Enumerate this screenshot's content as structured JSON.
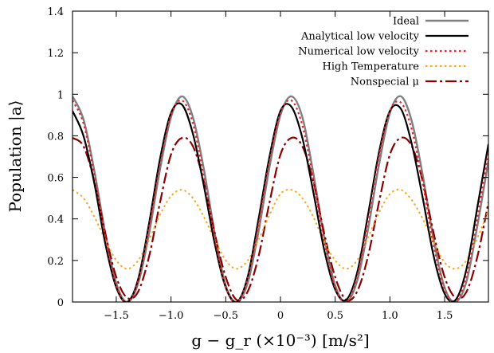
{
  "chart_data": {
    "type": "line",
    "title": "",
    "xlabel": "g − g_r (×10⁻³) [m/s²]",
    "ylabel": "Population |a⟩",
    "xlim": [
      -1.9,
      1.9
    ],
    "ylim": [
      0,
      1.4
    ],
    "x_ticks": [
      {
        "value": -1.5,
        "label": "−1.5"
      },
      {
        "value": -1.0,
        "label": "−1.0"
      },
      {
        "value": -0.5,
        "label": "−0.5"
      },
      {
        "value": 0,
        "label": "0"
      },
      {
        "value": 0.5,
        "label": "0.5"
      },
      {
        "value": 1.0,
        "label": "1.0"
      },
      {
        "value": 1.5,
        "label": "1.5"
      }
    ],
    "y_ticks": [
      {
        "value": 0,
        "label": "0"
      },
      {
        "value": 0.2,
        "label": "0.2"
      },
      {
        "value": 0.4,
        "label": "0.4"
      },
      {
        "value": 0.6,
        "label": "0.6"
      },
      {
        "value": 0.8,
        "label": "0.8"
      },
      {
        "value": 1,
        "label": "1"
      },
      {
        "value": 1.2,
        "label": "1.2"
      },
      {
        "value": 1.4,
        "label": "1.4"
      }
    ],
    "grid": false,
    "legend_position": "top-right",
    "series": [
      {
        "name": "Ideal",
        "color": "#808080",
        "dash": "solid",
        "width": 2.4,
        "x": [
          -1.9,
          -1.8,
          -1.7,
          -1.6,
          -1.5,
          -1.4,
          -1.3,
          -1.2,
          -1.1,
          -1.0,
          -0.9,
          -0.8,
          -0.7,
          -0.6,
          -0.5,
          -0.4,
          -0.3,
          -0.2,
          -0.1,
          0.0,
          0.1,
          0.2,
          0.3,
          0.4,
          0.5,
          0.6,
          0.7,
          0.8,
          0.9,
          1.0,
          1.1,
          1.2,
          1.3,
          1.4,
          1.5,
          1.6,
          1.7,
          1.8,
          1.9
        ],
        "y": [
          0.99,
          0.88,
          0.63,
          0.33,
          0.09,
          0.0,
          0.09,
          0.33,
          0.64,
          0.89,
          0.99,
          0.89,
          0.64,
          0.33,
          0.08,
          0.0,
          0.09,
          0.34,
          0.65,
          0.9,
          0.99,
          0.89,
          0.62,
          0.31,
          0.08,
          0.0,
          0.1,
          0.35,
          0.66,
          0.91,
          0.99,
          0.87,
          0.61,
          0.3,
          0.07,
          0.0,
          0.1,
          0.37,
          0.68
        ]
      },
      {
        "name": "Analytical low velocity",
        "color": "#000000",
        "dash": "solid",
        "width": 2.2,
        "x": [
          -1.9,
          -1.8,
          -1.7,
          -1.6,
          -1.5,
          -1.4,
          -1.3,
          -1.2,
          -1.1,
          -1.0,
          -0.9,
          -0.8,
          -0.7,
          -0.6,
          -0.5,
          -0.4,
          -0.3,
          -0.2,
          -0.1,
          0.0,
          0.1,
          0.2,
          0.3,
          0.4,
          0.5,
          0.6,
          0.7,
          0.8,
          0.9,
          1.0,
          1.1,
          1.2,
          1.3,
          1.4,
          1.5,
          1.6,
          1.7,
          1.8,
          1.9
        ],
        "y": [
          0.92,
          0.8,
          0.57,
          0.28,
          0.07,
          0.0,
          0.11,
          0.38,
          0.69,
          0.91,
          0.95,
          0.81,
          0.56,
          0.28,
          0.07,
          0.0,
          0.12,
          0.4,
          0.7,
          0.92,
          0.94,
          0.79,
          0.53,
          0.25,
          0.06,
          0.01,
          0.14,
          0.42,
          0.72,
          0.92,
          0.93,
          0.76,
          0.5,
          0.22,
          0.04,
          0.01,
          0.16,
          0.46,
          0.76
        ]
      },
      {
        "name": "Numerical low velocity",
        "color": "#e8242a",
        "dash": "2.5,3.5",
        "width": 2.2,
        "x": [
          -1.9,
          -1.8,
          -1.7,
          -1.6,
          -1.5,
          -1.4,
          -1.3,
          -1.2,
          -1.1,
          -1.0,
          -0.9,
          -0.8,
          -0.7,
          -0.6,
          -0.5,
          -0.4,
          -0.3,
          -0.2,
          -0.1,
          0.0,
          0.1,
          0.2,
          0.3,
          0.4,
          0.5,
          0.6,
          0.7,
          0.8,
          0.9,
          1.0,
          1.1,
          1.2,
          1.3,
          1.4,
          1.5,
          1.6,
          1.7,
          1.8,
          1.9
        ],
        "y": [
          0.97,
          0.86,
          0.61,
          0.31,
          0.08,
          0.0,
          0.1,
          0.36,
          0.66,
          0.9,
          0.97,
          0.86,
          0.6,
          0.31,
          0.07,
          0.0,
          0.11,
          0.37,
          0.68,
          0.91,
          0.97,
          0.85,
          0.59,
          0.29,
          0.07,
          0.0,
          0.12,
          0.39,
          0.7,
          0.92,
          0.96,
          0.83,
          0.57,
          0.27,
          0.06,
          0.0,
          0.13,
          0.41,
          0.72
        ]
      },
      {
        "name": "High Temperature",
        "color": "#f5a623",
        "dash": "2.5,3.5",
        "width": 2.0,
        "x": [
          -1.9,
          -1.8,
          -1.7,
          -1.6,
          -1.5,
          -1.4,
          -1.3,
          -1.2,
          -1.1,
          -1.0,
          -0.9,
          -0.8,
          -0.7,
          -0.6,
          -0.5,
          -0.4,
          -0.3,
          -0.2,
          -0.1,
          0.0,
          0.1,
          0.2,
          0.3,
          0.4,
          0.5,
          0.6,
          0.7,
          0.8,
          0.9,
          1.0,
          1.1,
          1.2,
          1.3,
          1.4,
          1.5,
          1.6,
          1.7,
          1.8,
          1.9
        ],
        "y": [
          0.54,
          0.5,
          0.41,
          0.3,
          0.2,
          0.16,
          0.2,
          0.3,
          0.42,
          0.51,
          0.54,
          0.5,
          0.41,
          0.3,
          0.2,
          0.16,
          0.2,
          0.3,
          0.42,
          0.52,
          0.54,
          0.5,
          0.41,
          0.29,
          0.2,
          0.16,
          0.2,
          0.31,
          0.43,
          0.52,
          0.54,
          0.49,
          0.4,
          0.29,
          0.19,
          0.16,
          0.2,
          0.31,
          0.44
        ]
      },
      {
        "name": "Nonspecial μ",
        "color": "#8b0000",
        "dash": "14,4,3,4",
        "width": 2.2,
        "x": [
          -1.9,
          -1.8,
          -1.7,
          -1.6,
          -1.5,
          -1.4,
          -1.3,
          -1.2,
          -1.1,
          -1.0,
          -0.9,
          -0.8,
          -0.7,
          -0.6,
          -0.5,
          -0.4,
          -0.3,
          -0.2,
          -0.1,
          0.0,
          0.1,
          0.2,
          0.3,
          0.4,
          0.5,
          0.6,
          0.7,
          0.8,
          0.9,
          1.0,
          1.1,
          1.2,
          1.3,
          1.4,
          1.5,
          1.6,
          1.7,
          1.8,
          1.9
        ],
        "y": [
          0.79,
          0.75,
          0.58,
          0.33,
          0.12,
          0.02,
          0.05,
          0.22,
          0.48,
          0.71,
          0.79,
          0.75,
          0.58,
          0.33,
          0.12,
          0.01,
          0.05,
          0.22,
          0.48,
          0.71,
          0.79,
          0.75,
          0.58,
          0.33,
          0.12,
          0.01,
          0.05,
          0.22,
          0.48,
          0.71,
          0.79,
          0.75,
          0.58,
          0.33,
          0.12,
          0.02,
          0.05,
          0.22,
          0.48
        ]
      }
    ]
  }
}
